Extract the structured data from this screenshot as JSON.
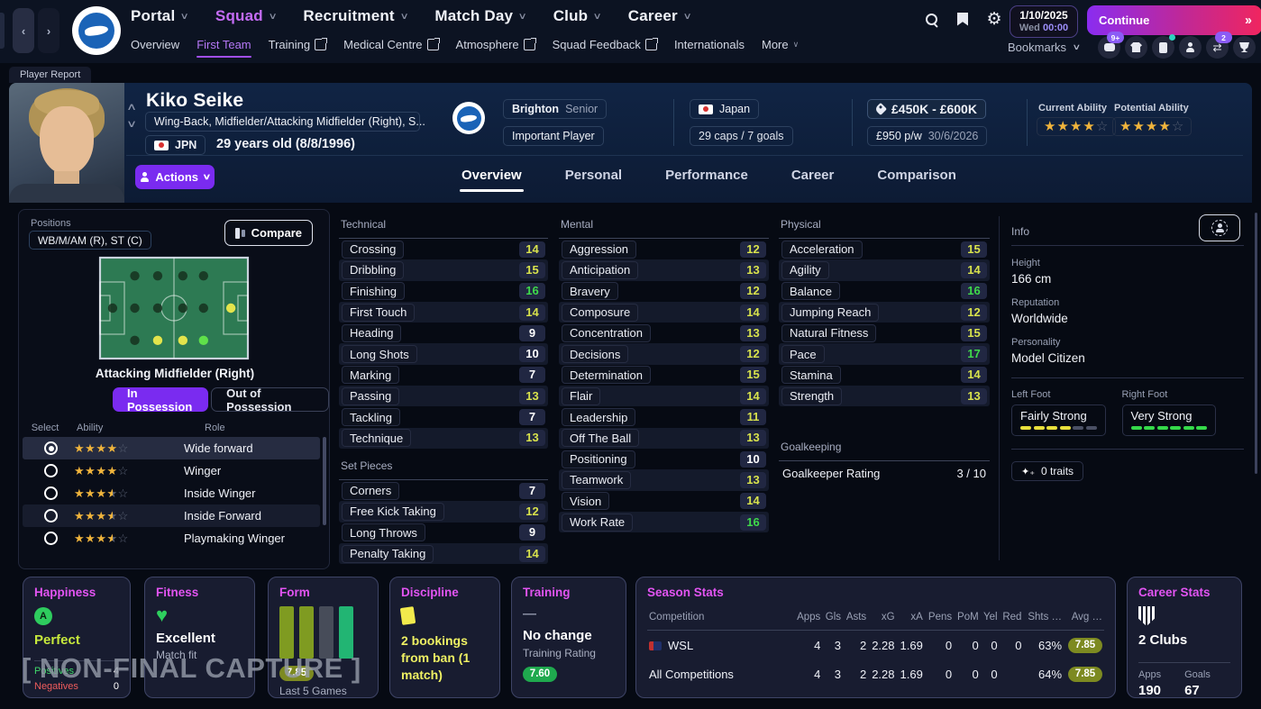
{
  "colors": {
    "accent_purple": "#7a2bf0",
    "title_magenta": "#e254f2",
    "attr_mid": "#d8e24c",
    "attr_high": "#3fd94b",
    "star_gold": "#f0b43c",
    "continue_gradient_from": "#8a2cf0",
    "continue_gradient_to": "#f0255f"
  },
  "top_nav": {
    "menus": [
      "Portal",
      "Squad",
      "Recruitment",
      "Match Day",
      "Club",
      "Career"
    ],
    "active_menu": "Squad",
    "date": "1/10/2025",
    "day": "Wed",
    "time": "00:00",
    "continue_label": "Continue",
    "bookmarks_label": "Bookmarks",
    "icons": [
      "search-icon",
      "bookmark-icon",
      "gear-icon",
      "messages-icon",
      "kit-icon",
      "report-card-icon",
      "scouting-icon",
      "transfers-icon",
      "competitions-icon"
    ],
    "badges": {
      "messages": "9+",
      "transfers": "2"
    }
  },
  "sub_nav": {
    "items": [
      {
        "label": "Overview",
        "active": false,
        "external": false
      },
      {
        "label": "First Team",
        "active": true,
        "external": false
      },
      {
        "label": "Training",
        "active": false,
        "external": true
      },
      {
        "label": "Medical Centre",
        "active": false,
        "external": true
      },
      {
        "label": "Atmosphere",
        "active": false,
        "external": true
      },
      {
        "label": "Squad Feedback",
        "active": false,
        "external": true
      },
      {
        "label": "Internationals",
        "active": false,
        "external": false
      },
      {
        "label": "More",
        "active": false,
        "external": false
      }
    ]
  },
  "page_tab": "Player Report",
  "player": {
    "name": "Kiko Seike",
    "positions": "Wing-Back, Midfielder/Attacking Midfielder (Right), S...",
    "nation_code": "JPN",
    "age": "29 years old (8/8/1996)",
    "club": "Brighton",
    "squad": "Senior",
    "club_status": "Important Player",
    "nation": "Japan",
    "caps": "29 caps / 7 goals",
    "value": "£450K - £600K",
    "wage": "£950 p/w",
    "contract_end": "30/6/2026",
    "current_ability_label": "Current Ability",
    "potential_ability_label": "Potential Ability",
    "current_ability_stars": 4,
    "potential_ability_stars": 4,
    "actions_label": "Actions"
  },
  "tabs": [
    "Overview",
    "Personal",
    "Performance",
    "Career",
    "Comparison"
  ],
  "active_tab": "Overview",
  "positions_panel": {
    "title": "Positions",
    "positions_short": "WB/M/AM (R), ST (C)",
    "compare_label": "Compare",
    "selected_position": "Attacking Midfielder (Right)",
    "in_possession": "In Possession",
    "out_of_possession": "Out of Possession",
    "pitch_dots": [
      {
        "fx": 0.235,
        "fy": 0.18,
        "c": "dark"
      },
      {
        "fx": 0.39,
        "fy": 0.18,
        "c": "dark"
      },
      {
        "fx": 0.56,
        "fy": 0.18,
        "c": "dark"
      },
      {
        "fx": 0.7,
        "fy": 0.18,
        "c": "dark"
      },
      {
        "fx": 0.085,
        "fy": 0.5,
        "c": "dark"
      },
      {
        "fx": 0.235,
        "fy": 0.5,
        "c": "dark"
      },
      {
        "fx": 0.39,
        "fy": 0.5,
        "c": "dark"
      },
      {
        "fx": 0.56,
        "fy": 0.5,
        "c": "dark"
      },
      {
        "fx": 0.7,
        "fy": 0.5,
        "c": "dark"
      },
      {
        "fx": 0.885,
        "fy": 0.5,
        "c": "yellow"
      },
      {
        "fx": 0.235,
        "fy": 0.82,
        "c": "dark"
      },
      {
        "fx": 0.39,
        "fy": 0.82,
        "c": "yellow"
      },
      {
        "fx": 0.56,
        "fy": 0.82,
        "c": "yellow"
      },
      {
        "fx": 0.7,
        "fy": 0.82,
        "c": "green"
      }
    ],
    "roles_headers": [
      "Select",
      "Ability",
      "Role"
    ],
    "roles": [
      {
        "stars": 4,
        "role": "Wide forward",
        "selected": true
      },
      {
        "stars": 4,
        "role": "Winger",
        "selected": false
      },
      {
        "stars": 3.5,
        "role": "Inside Winger",
        "selected": false
      },
      {
        "stars": 3.5,
        "role": "Inside Forward",
        "selected": false
      },
      {
        "stars": 3.5,
        "role": "Playmaking Winger",
        "selected": false
      }
    ]
  },
  "attributes": {
    "technical_title": "Technical",
    "technical": [
      [
        "Crossing",
        14
      ],
      [
        "Dribbling",
        15
      ],
      [
        "Finishing",
        16
      ],
      [
        "First Touch",
        14
      ],
      [
        "Heading",
        9
      ],
      [
        "Long Shots",
        10
      ],
      [
        "Marking",
        7
      ],
      [
        "Passing",
        13
      ],
      [
        "Tackling",
        7
      ],
      [
        "Technique",
        13
      ]
    ],
    "set_pieces_title": "Set Pieces",
    "set_pieces": [
      [
        "Corners",
        7
      ],
      [
        "Free Kick Taking",
        12
      ],
      [
        "Long Throws",
        9
      ],
      [
        "Penalty Taking",
        14
      ]
    ],
    "mental_title": "Mental",
    "mental": [
      [
        "Aggression",
        12
      ],
      [
        "Anticipation",
        13
      ],
      [
        "Bravery",
        12
      ],
      [
        "Composure",
        14
      ],
      [
        "Concentration",
        13
      ],
      [
        "Decisions",
        12
      ],
      [
        "Determination",
        15
      ],
      [
        "Flair",
        14
      ],
      [
        "Leadership",
        11
      ],
      [
        "Off The Ball",
        13
      ],
      [
        "Positioning",
        10
      ],
      [
        "Teamwork",
        13
      ],
      [
        "Vision",
        14
      ],
      [
        "Work Rate",
        16
      ]
    ],
    "physical_title": "Physical",
    "physical": [
      [
        "Acceleration",
        15
      ],
      [
        "Agility",
        14
      ],
      [
        "Balance",
        16
      ],
      [
        "Jumping Reach",
        12
      ],
      [
        "Natural Fitness",
        15
      ],
      [
        "Pace",
        17
      ],
      [
        "Stamina",
        14
      ],
      [
        "Strength",
        13
      ]
    ],
    "goalkeeping_title": "Goalkeeping",
    "goalkeeper_rating_label": "Goalkeeper Rating",
    "goalkeeper_rating": "3 / 10"
  },
  "info_panel": {
    "title": "Info",
    "height_label": "Height",
    "height": "166 cm",
    "reputation_label": "Reputation",
    "reputation": "Worldwide",
    "personality_label": "Personality",
    "personality": "Model Citizen",
    "left_foot_label": "Left Foot",
    "left_foot": "Fairly Strong",
    "left_foot_bars": 4,
    "right_foot_label": "Right Foot",
    "right_foot": "Very Strong",
    "right_foot_bars": 6,
    "traits_label": "0 traits"
  },
  "cards": {
    "happiness": {
      "title": "Happiness",
      "badge_letter": "A",
      "level": "Perfect",
      "positives_label": "Positives",
      "positives": "4",
      "negatives_label": "Negatives",
      "negatives": "0"
    },
    "fitness": {
      "title": "Fitness",
      "status": "Excellent",
      "sub": "Match fit"
    },
    "form": {
      "title": "Form",
      "bar_colors": [
        "#7f9b21",
        "#7f9b21",
        "#474c59",
        "#22b573"
      ],
      "rating": "7.85",
      "caption": "Last 5 Games"
    },
    "discipline": {
      "title": "Discipline",
      "text": "2 bookings from ban (1 match)"
    },
    "training": {
      "title": "Training",
      "status": "No change",
      "sub": "Training Rating",
      "rating": "7.60"
    }
  },
  "season_stats": {
    "title": "Season Stats",
    "headers": [
      "Competition",
      "Apps",
      "Gls",
      "Asts",
      "xG",
      "xA",
      "Pens",
      "PoM",
      "Yel",
      "Red",
      "Shts …",
      "Avg …"
    ],
    "rows": [
      {
        "competition": "WSL",
        "has_icon": true,
        "values": [
          "4",
          "3",
          "2",
          "2.28",
          "1.69",
          "0",
          "0",
          "0",
          "0",
          "63%"
        ],
        "rating": "7.85"
      },
      {
        "competition": "All Competitions",
        "has_icon": false,
        "values": [
          "4",
          "3",
          "2",
          "2.28",
          "1.69",
          "0",
          "0",
          "0",
          "",
          "64%"
        ],
        "rating": "7.85"
      }
    ]
  },
  "career_stats": {
    "title": "Career Stats",
    "clubs": "2 Clubs",
    "apps_label": "Apps",
    "apps": "190",
    "goals_label": "Goals",
    "goals": "67"
  },
  "watermark": "[ NON-FINAL CAPTURE ]"
}
